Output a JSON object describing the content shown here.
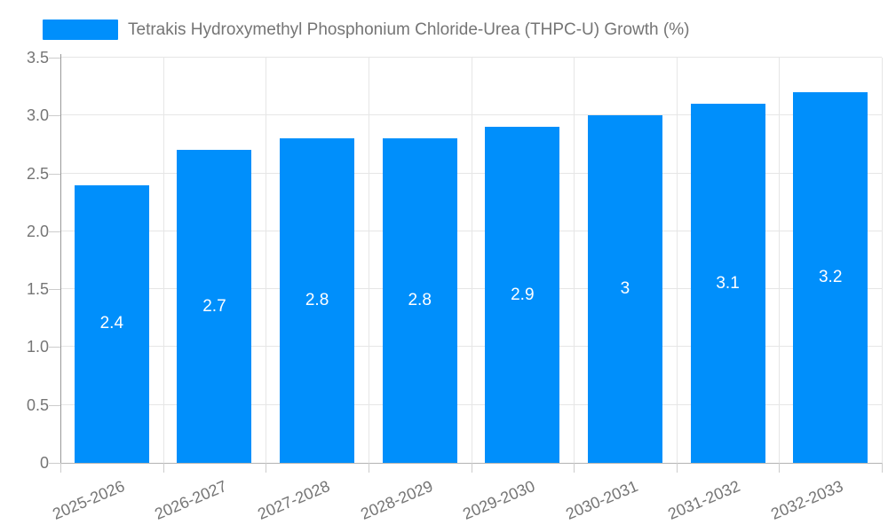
{
  "legend": {
    "series_label": "Tetrakis Hydroxymethyl Phosphonium Chloride-Urea (THPC-U) Growth (%)"
  },
  "colors": {
    "bar": "#008FFB",
    "bar_label_text": "#ffffff",
    "axis_text": "#757575",
    "legend_text": "#757575",
    "gridline": "#e6e6e6",
    "y_axis_line": "#999999",
    "x_axis_line": "#b3b3b3",
    "tick_mark": "#cccccc",
    "background": "#ffffff"
  },
  "chart_data": {
    "type": "bar",
    "title": "Tetrakis Hydroxymethyl Phosphonium Chloride-Urea (THPC-U) Growth (%)",
    "categories": [
      "2025-2026",
      "2026-2027",
      "2027-2028",
      "2028-2029",
      "2029-2030",
      "2030-2031",
      "2031-2032",
      "2032-2033"
    ],
    "values": [
      2.4,
      2.7,
      2.8,
      2.8,
      2.9,
      3,
      3.1,
      3.2
    ],
    "value_labels": [
      "2.4",
      "2.7",
      "2.8",
      "2.8",
      "2.9",
      "3",
      "3.1",
      "3.2"
    ],
    "xlabel": "",
    "ylabel": "",
    "ylim": [
      0,
      3.5
    ],
    "ytick_step": 0.5,
    "ytick_labels": [
      "0",
      "0.5",
      "1.0",
      "1.5",
      "2.0",
      "2.5",
      "3.0",
      "3.5"
    ],
    "grid": "both",
    "legend_position": "top-left",
    "bar_label_position": "middle-of-bar",
    "x_label_rotation_deg": -23
  }
}
